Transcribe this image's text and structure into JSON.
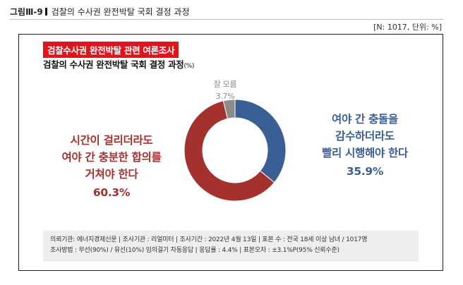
{
  "header": {
    "figure_label": "그림Ⅲ-9",
    "figure_title": "검찰의 수사권 완전박탈 국회 결정 과정"
  },
  "meta": "[N: 1017, 단위: %]",
  "card": {
    "tag": "검찰수사권 완전박탈 관련 여론조사",
    "subtitle": "검찰의 수사권 완전박탈 국회 결정 과정",
    "subtitle_unit": "(%)"
  },
  "chart_data": {
    "type": "pie",
    "title": "검찰의 수사권 완전박탈 국회 결정 과정",
    "unit": "%",
    "slices": [
      {
        "label_lines": [
          "여야 간 충돌을",
          "감수하더라도",
          "빨리 시행해야 한다"
        ],
        "value": 35.9,
        "value_label": "35.9%",
        "color": "#3a5f94"
      },
      {
        "label_lines": [
          "시간이 걸리더라도",
          "여야 간 충분한 합의를",
          "거쳐야 한다"
        ],
        "value": 60.3,
        "value_label": "60.3%",
        "color": "#a5312f"
      },
      {
        "label_lines": [
          "잘 모름"
        ],
        "value": 3.7,
        "value_label": "3.7%",
        "color": "#8c8c8c"
      }
    ]
  },
  "footer": {
    "line1": "의뢰기관: 에너지경제신문 | 조사기관 : 리얼미터 | 조사기간 : 2022년 4월 13일 | 표본 수 : 전국 18세 이상 남녀 / 1017명",
    "line2": "조사방법 : 무선(90%) / 유선(10%) 임의걸기 자동응답 | 응답률 : 4.4% | 표본오차 : ±3.1%P(95% 신뢰수준)"
  }
}
